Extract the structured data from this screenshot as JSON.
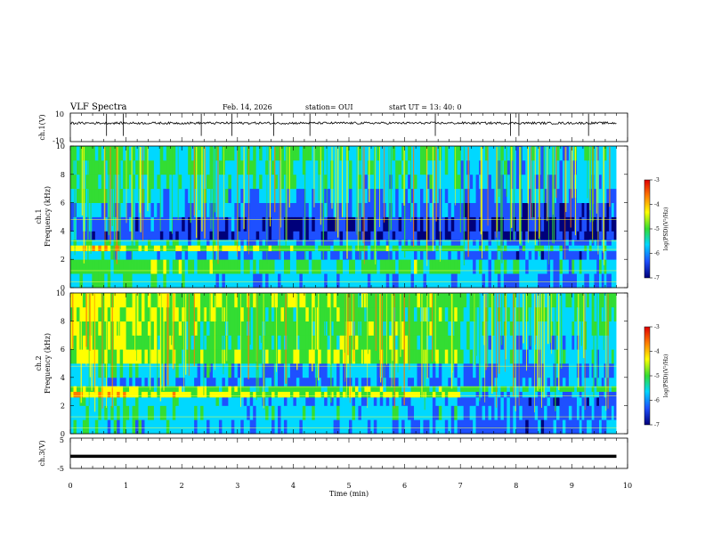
{
  "header": {
    "title": "VLF Spectra",
    "date": "Feb. 14, 2026",
    "station": "station= OUI",
    "start": "start  UT  =   13: 40: 0"
  },
  "panels": {
    "ch1": {
      "ylabel": "ch.1(V)",
      "ytick_top": "10",
      "ytick_bottom": "-10"
    },
    "spec1": {
      "ylabel_line1": "ch.1",
      "ylabel_line2": "Frequency (kHz)"
    },
    "spec2": {
      "ylabel_line1": "ch.2",
      "ylabel_line2": "Frequency (kHz)"
    },
    "ch3": {
      "ylabel": "ch.3(V)",
      "ytick_top": "5",
      "ytick_bottom": "-5"
    }
  },
  "colorbar": {
    "label": "log(PSD)(V²/Hz)",
    "ticks": [
      "-3",
      "-4",
      "-5",
      "-6",
      "-7"
    ],
    "colors": [
      "#e00000",
      "#ff7a00",
      "#ffff00",
      "#33dd33",
      "#00d8ff",
      "#1e50ff",
      "#00007a"
    ]
  },
  "chart_data": [
    {
      "type": "line",
      "title": "VLF Spectra",
      "ylabel": "ch.1(V)",
      "ylim": [
        -10,
        10
      ],
      "xlim": [
        0,
        10
      ],
      "x": [
        0,
        2,
        4,
        6,
        8,
        9.8
      ],
      "y": [
        3,
        3,
        3,
        3,
        3,
        3
      ],
      "spikes_x": [
        0.65,
        0.95,
        2.35,
        2.9,
        3.65,
        4.3,
        6.55,
        7.9,
        8.05,
        9.3
      ]
    },
    {
      "type": "heatmap",
      "ylabel": "ch.1 Frequency (kHz)",
      "xlabel": "Time (min)",
      "xlim": [
        0,
        10
      ],
      "ylim": [
        0,
        10
      ],
      "yticks": [
        "0",
        "2",
        "4",
        "6",
        "8",
        "10"
      ],
      "x": [
        0,
        1,
        2,
        3,
        4,
        5,
        6,
        7,
        8,
        9,
        9.8
      ],
      "rows_khz": [
        0,
        1,
        2,
        2.6,
        3,
        3.4,
        4,
        5,
        6,
        7,
        8,
        9,
        10
      ],
      "log_psd": [
        [
          -5.5,
          -5.6,
          -5.7,
          -5.8,
          -5.8,
          -5.8,
          -5.8,
          -5.9,
          -6.0,
          -5.9,
          -5.9
        ],
        [
          -5.0,
          -5.0,
          -5.1,
          -5.2,
          -5.2,
          -5.1,
          -5.1,
          -5.6,
          -5.7,
          -5.6,
          -5.6
        ],
        [
          -5.6,
          -5.7,
          -5.9,
          -6.1,
          -6.1,
          -6.0,
          -6.0,
          -6.2,
          -6.3,
          -6.3,
          -6.2
        ],
        [
          -4.3,
          -4.6,
          -4.6,
          -4.9,
          -5.1,
          -5.0,
          -5.1,
          -5.5,
          -5.6,
          -5.5,
          -5.5
        ],
        [
          -5.4,
          -5.5,
          -5.6,
          -5.8,
          -5.9,
          -5.9,
          -5.9,
          -6.0,
          -6.1,
          -6.1,
          -6.1
        ],
        [
          -6.4,
          -6.5,
          -6.6,
          -6.6,
          -6.6,
          -6.6,
          -6.6,
          -6.7,
          -6.8,
          -6.7,
          -6.7
        ],
        [
          -6.1,
          -6.3,
          -6.4,
          -6.5,
          -6.6,
          -6.6,
          -6.5,
          -6.7,
          -6.8,
          -6.7,
          -6.7
        ],
        [
          -5.8,
          -6.0,
          -6.1,
          -6.2,
          -6.2,
          -6.2,
          -6.2,
          -6.4,
          -6.5,
          -6.4,
          -6.4
        ],
        [
          -5.4,
          -5.6,
          -5.7,
          -5.8,
          -5.8,
          -5.8,
          -5.8,
          -6.0,
          -6.1,
          -6.0,
          -6.0
        ],
        [
          -5.2,
          -5.4,
          -5.5,
          -5.6,
          -5.6,
          -5.6,
          -5.6,
          -5.8,
          -5.9,
          -5.8,
          -5.8
        ],
        [
          -5.2,
          -5.3,
          -5.4,
          -5.5,
          -5.5,
          -5.5,
          -5.5,
          -5.7,
          -5.8,
          -5.7,
          -5.7
        ],
        [
          -5.1,
          -5.2,
          -5.3,
          -5.4,
          -5.4,
          -5.4,
          -5.4,
          -5.6,
          -5.7,
          -5.6,
          -5.6
        ],
        [
          -5.2,
          -5.3,
          -5.4,
          -5.5,
          -5.5,
          -5.5,
          -5.5,
          -5.7,
          -5.8,
          -5.7,
          -5.7
        ]
      ]
    },
    {
      "type": "heatmap",
      "ylabel": "ch.2 Frequency (kHz)",
      "xlabel": "Time (min)",
      "xlim": [
        0,
        10
      ],
      "ylim": [
        0,
        10
      ],
      "yticks": [
        "0",
        "2",
        "4",
        "6",
        "8",
        "10"
      ],
      "x": [
        0,
        1,
        2,
        3,
        4,
        5,
        6,
        7,
        8,
        9,
        9.8
      ],
      "rows_khz": [
        0,
        1,
        2,
        2.6,
        3,
        3.4,
        4,
        5,
        6,
        7,
        8,
        9,
        10
      ],
      "log_psd": [
        [
          -5.6,
          -5.7,
          -5.8,
          -5.9,
          -5.9,
          -5.9,
          -5.9,
          -6.2,
          -6.3,
          -6.2,
          -6.2
        ],
        [
          -5.4,
          -5.4,
          -5.6,
          -5.7,
          -5.7,
          -5.7,
          -5.7,
          -6.0,
          -6.1,
          -6.0,
          -6.0
        ],
        [
          -5.5,
          -5.6,
          -5.7,
          -5.8,
          -5.8,
          -5.8,
          -5.8,
          -6.3,
          -6.4,
          -6.3,
          -6.3
        ],
        [
          -4.2,
          -4.4,
          -4.5,
          -4.6,
          -4.6,
          -4.5,
          -4.5,
          -5.8,
          -5.9,
          -5.8,
          -5.8
        ],
        [
          -4.7,
          -4.9,
          -5.0,
          -5.1,
          -5.1,
          -5.0,
          -5.0,
          -5.2,
          -5.3,
          -5.2,
          -5.2
        ],
        [
          -5.9,
          -6.0,
          -6.1,
          -6.2,
          -6.2,
          -6.1,
          -6.1,
          -5.9,
          -6.0,
          -5.9,
          -5.9
        ],
        [
          -5.4,
          -5.6,
          -5.7,
          -5.8,
          -5.8,
          -5.8,
          -5.8,
          -6.1,
          -6.2,
          -6.1,
          -6.1
        ],
        [
          -4.6,
          -4.7,
          -4.9,
          -5.0,
          -4.8,
          -4.7,
          -4.8,
          -5.6,
          -5.7,
          -5.6,
          -5.6
        ],
        [
          -4.8,
          -5.0,
          -5.1,
          -5.2,
          -5.0,
          -4.9,
          -5.0,
          -5.7,
          -5.8,
          -5.7,
          -5.7
        ],
        [
          -4.7,
          -4.8,
          -5.0,
          -5.1,
          -5.0,
          -5.0,
          -5.0,
          -5.5,
          -5.6,
          -5.5,
          -5.5
        ],
        [
          -4.6,
          -4.7,
          -4.9,
          -5.0,
          -5.0,
          -5.0,
          -5.0,
          -5.4,
          -5.5,
          -5.4,
          -5.4
        ],
        [
          -4.5,
          -4.7,
          -4.8,
          -4.9,
          -4.9,
          -4.9,
          -4.9,
          -5.3,
          -5.4,
          -5.3,
          -5.3
        ],
        [
          -4.6,
          -4.7,
          -4.8,
          -4.9,
          -4.9,
          -4.9,
          -4.9,
          -5.3,
          -5.4,
          -5.3,
          -5.3
        ]
      ]
    },
    {
      "type": "line",
      "ylabel": "ch.3(V)",
      "xlabel": "Time (min)",
      "ylim": [
        -5,
        5
      ],
      "xlim": [
        0,
        10
      ],
      "xticks": [
        "0",
        "1",
        "2",
        "3",
        "4",
        "5",
        "6",
        "7",
        "8",
        "9",
        "10"
      ],
      "x": [
        0,
        2,
        4,
        6,
        8,
        9.8
      ],
      "y": [
        -1,
        -1,
        -1,
        -1,
        -1,
        -1
      ]
    }
  ],
  "xaxis": {
    "label": "Time (min)",
    "ticks": [
      "0",
      "1",
      "2",
      "3",
      "4",
      "5",
      "6",
      "7",
      "8",
      "9",
      "10"
    ]
  }
}
